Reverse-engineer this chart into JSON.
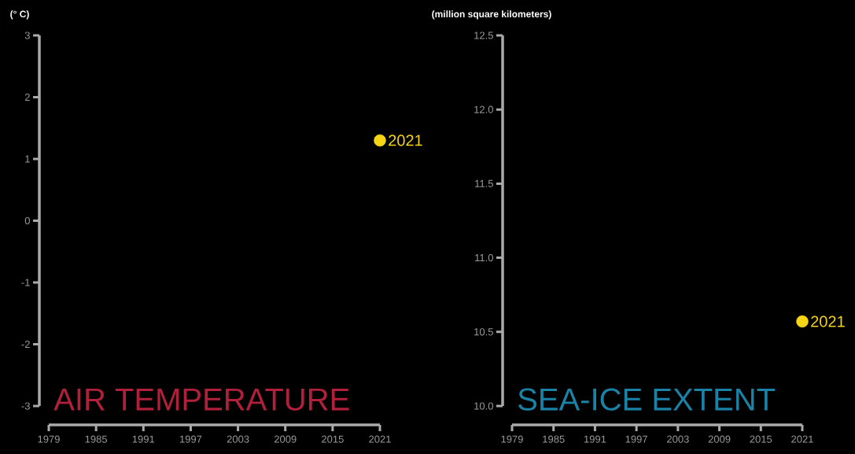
{
  "chart_data": [
    {
      "type": "scatter",
      "title": "AIR TEMPERATURE",
      "ylabel": "(° C)",
      "x": [
        2021
      ],
      "values": [
        1.3
      ],
      "color": "#f5d516",
      "marker": "circle",
      "xlim": [
        1979,
        2021
      ],
      "ylim": [
        -3,
        3
      ],
      "xticks": [
        1979,
        1985,
        1991,
        1997,
        2003,
        2009,
        2015,
        2021
      ],
      "yticks": [
        -3,
        -2,
        -1,
        0,
        1,
        2,
        3
      ],
      "annotations": [
        {
          "text": "2021",
          "x": 2021,
          "y": 1.3
        }
      ]
    },
    {
      "type": "scatter",
      "title": "SEA-ICE EXTENT",
      "ylabel": "(million square kilometers)",
      "x": [
        2021
      ],
      "values": [
        10.57
      ],
      "color": "#f5d516",
      "marker": "circle",
      "xlim": [
        1979,
        2021
      ],
      "ylim": [
        10.0,
        12.5
      ],
      "xticks": [
        1979,
        1985,
        1991,
        1997,
        2003,
        2009,
        2015,
        2021
      ],
      "yticks": [
        {
          "value": 10.0,
          "label": "10.0"
        },
        10.5,
        {
          "value": 11.0,
          "label": "11.0"
        },
        11.5,
        {
          "value": 12.0,
          "label": "12.0"
        },
        12.5
      ],
      "annotations": [
        {
          "text": "2021",
          "x": 2021,
          "y": 10.57
        }
      ]
    }
  ]
}
